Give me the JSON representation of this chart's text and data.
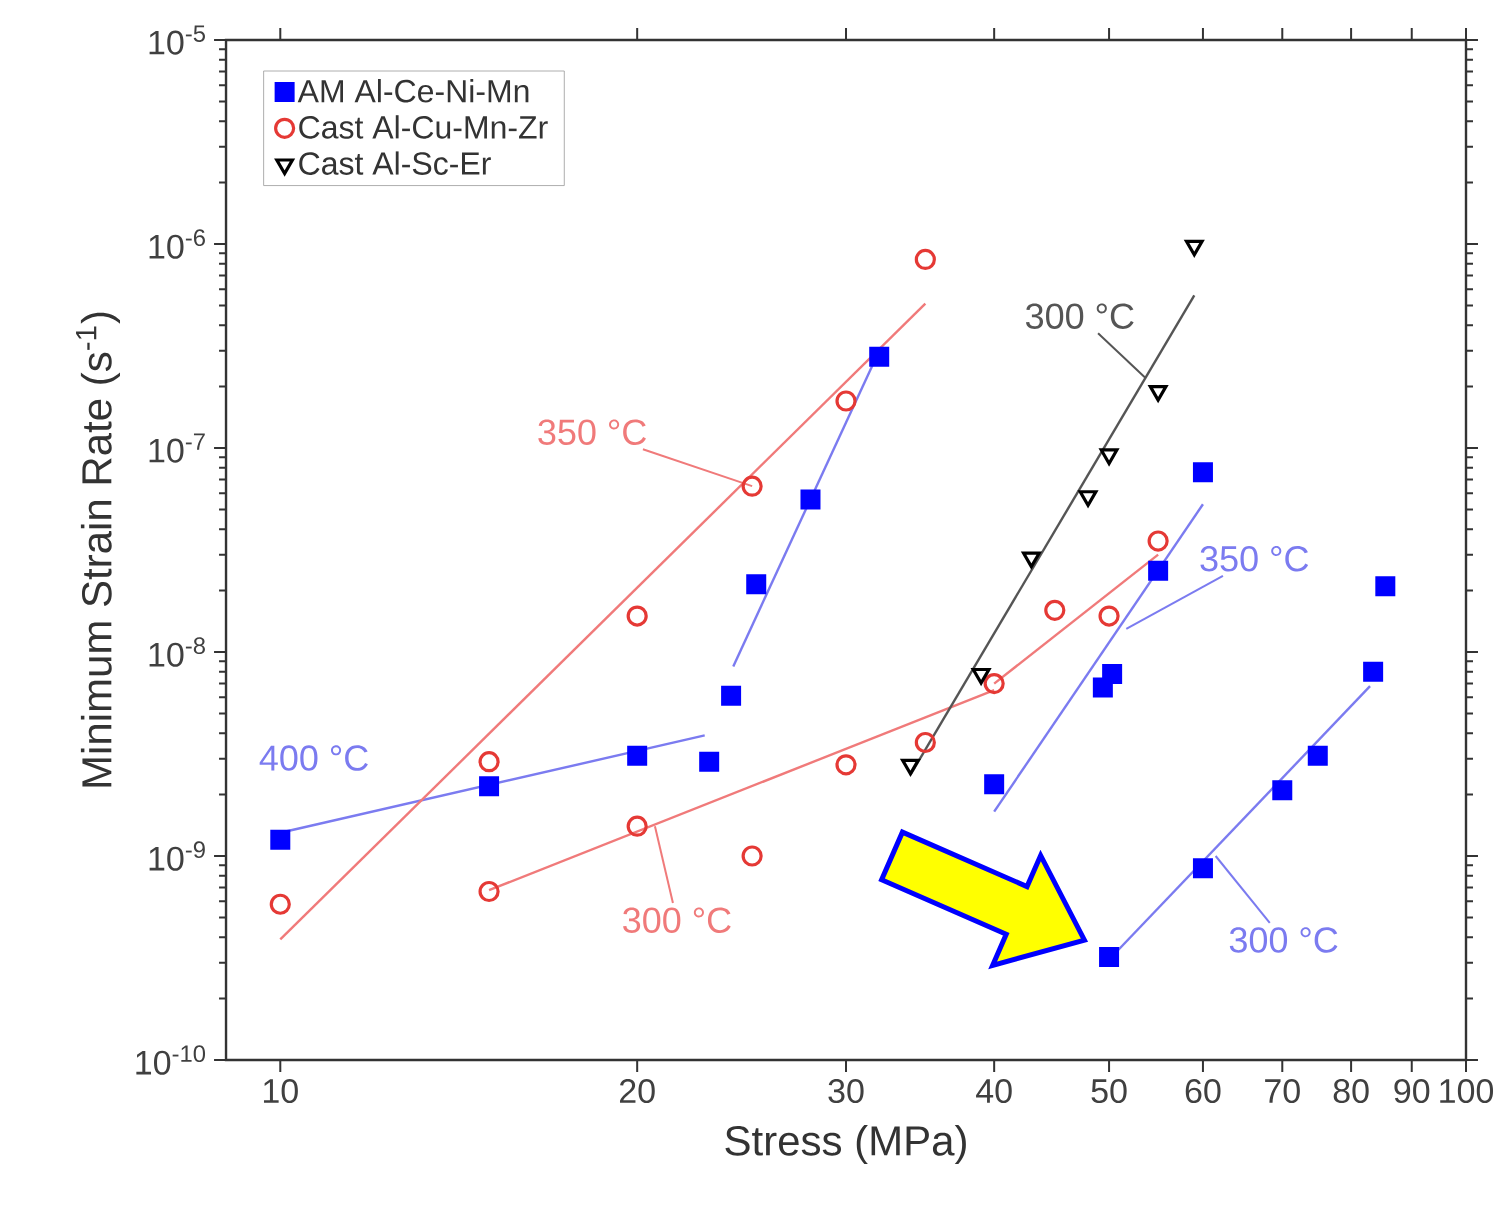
{
  "chart_data": {
    "type": "scatter",
    "xlabel": "Stress (MPa)",
    "ylabel": "Minimum Strain Rate (s$^{-1}$)",
    "log": "xy",
    "xlim": [
      9,
      100
    ],
    "ylim": [
      1e-10,
      1e-05
    ],
    "xticks": [
      10,
      20,
      30,
      40,
      50,
      60,
      70,
      80,
      90,
      100
    ],
    "yticks": [
      {
        "value": 1e-10,
        "label": "10$^{-10}$"
      },
      {
        "value": 1e-09,
        "label": "10$^{-9}$"
      },
      {
        "value": 1e-08,
        "label": "10$^{-8}$"
      },
      {
        "value": 1e-07,
        "label": "10$^{-7}$"
      },
      {
        "value": 1e-06,
        "label": "10$^{-6}$"
      },
      {
        "value": 1e-05,
        "label": "10$^{-5}$"
      }
    ],
    "legend": "top left",
    "series": [
      {
        "name": "AM Al-Ce-Ni-Mn",
        "marker": "square",
        "color": "#0000ff",
        "x": [
          10,
          15,
          20,
          23,
          24,
          25.2,
          28,
          32,
          40,
          49.4,
          50.3,
          55,
          60,
          50,
          60,
          70,
          75,
          83.5,
          85.5
        ],
        "values": [
          1.2e-09,
          2.2e-09,
          3.1e-09,
          2.9e-09,
          6.1e-09,
          2.15e-08,
          5.6e-08,
          2.8e-07,
          2.25e-09,
          6.7e-09,
          7.8e-09,
          2.5e-08,
          7.6e-08,
          3.2e-10,
          8.7e-10,
          2.1e-09,
          3.1e-09,
          8e-09,
          2.1e-08
        ]
      },
      {
        "name": "Cast Al-Cu-Mn-Zr",
        "marker": "circle",
        "color": "#e53935",
        "x": [
          10,
          15,
          15,
          20,
          20,
          25,
          25,
          30,
          30,
          35,
          35,
          40,
          45,
          50,
          55
        ],
        "values": [
          5.8e-10,
          2.9e-09,
          6.7e-10,
          1.5e-08,
          1.4e-09,
          1e-09,
          6.5e-08,
          2.8e-09,
          1.7e-07,
          3.6e-09,
          8.4e-07,
          7e-09,
          1.6e-08,
          1.5e-08,
          3.5e-08
        ]
      },
      {
        "name": "Cast Al-Sc-Er",
        "marker": "triangle",
        "color": "#000000",
        "x": [
          34,
          39,
          43,
          48,
          50,
          55,
          59
        ],
        "values": [
          2.8e-09,
          7.8e-09,
          2.9e-08,
          5.8e-08,
          9.3e-08,
          1.9e-07,
          9.8e-07
        ]
      },
      {
        "type": "line",
        "marker": "none",
        "color": "#7b7bf0",
        "x": [
          10,
          22.8
        ],
        "values": [
          1.3e-09,
          3.9e-09
        ]
      },
      {
        "type": "line",
        "marker": "none",
        "color": "#7b7bf0",
        "x": [
          24.1,
          32
        ],
        "values": [
          8.5e-09,
          3e-07
        ]
      },
      {
        "type": "line",
        "marker": "none",
        "color": "#7b7bf0",
        "x": [
          40,
          60
        ],
        "values": [
          1.65e-09,
          5.3e-08
        ]
      },
      {
        "type": "line",
        "marker": "none",
        "color": "#7b7bf0",
        "x": [
          50.5,
          83
        ],
        "values": [
          3.3e-10,
          6.8e-09
        ]
      },
      {
        "type": "line",
        "marker": "none",
        "color": "#f07a7a",
        "x": [
          10,
          35
        ],
        "values": [
          3.9e-10,
          5.1e-07
        ]
      },
      {
        "type": "line",
        "marker": "none",
        "color": "#f07a7a",
        "x": [
          15,
          40
        ],
        "values": [
          6.8e-10,
          6.5e-09
        ]
      },
      {
        "type": "line",
        "marker": "none",
        "color": "#f07a7a",
        "x": [
          40,
          55
        ],
        "values": [
          7e-09,
          3e-08
        ]
      },
      {
        "type": "line",
        "marker": "none",
        "color": "#555555",
        "x": [
          34,
          59
        ],
        "values": [
          2.5e-09,
          5.6e-07
        ]
      }
    ],
    "annotations": [
      "400 °C",
      {
        "text": "350 °C",
        "x": 25,
        "y": 6.5e-08
      },
      {
        "text": "300 °C",
        "x": 20.7,
        "y": 1.4e-09
      },
      {
        "text": "300 °C",
        "x": 53.7,
        "y": 2.2e-07
      },
      {
        "text": "350 °C",
        "x": 51.7,
        "y": 1.3e-08
      },
      {
        "text": "300 °C",
        "x": 61.5,
        "y": 1e-09
      }
    ]
  }
}
